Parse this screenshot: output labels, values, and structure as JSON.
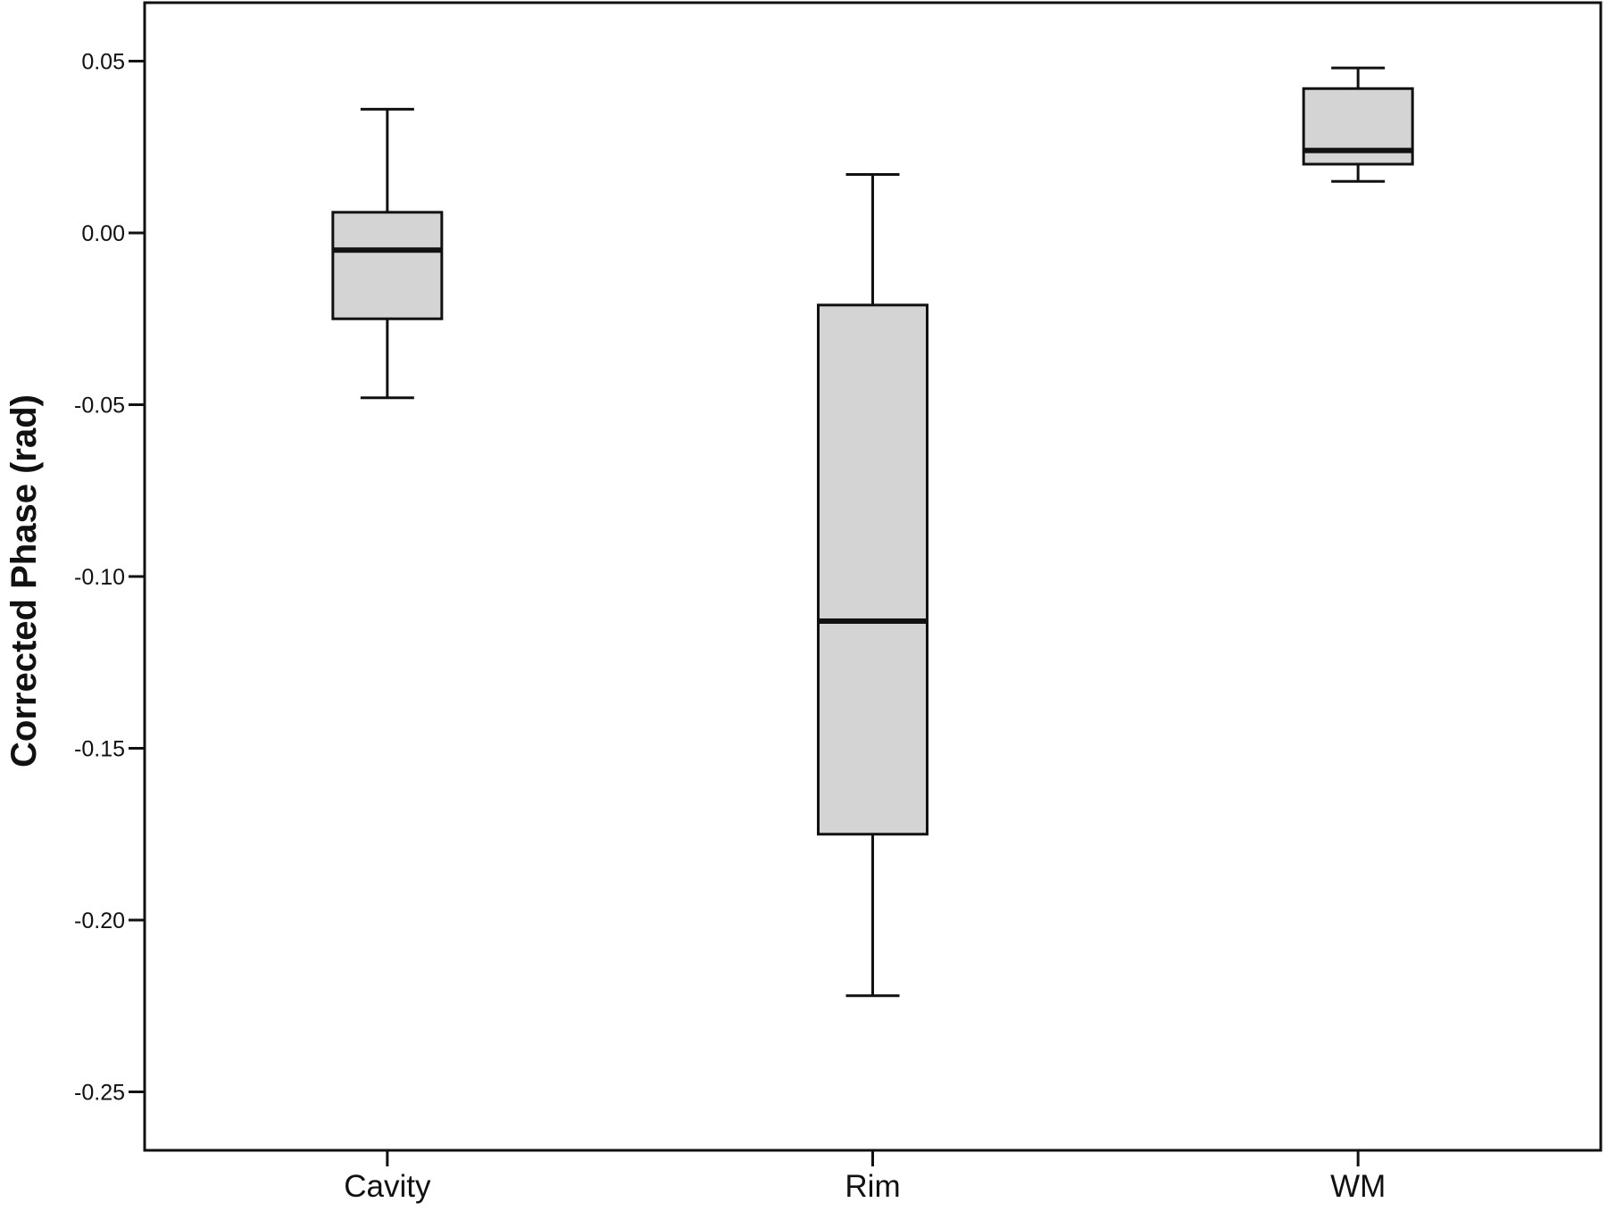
{
  "chart_data": {
    "type": "boxplot",
    "title": "",
    "xlabel": "",
    "ylabel": "Corrected Phase (rad)",
    "ylim": [
      -0.267,
      0.067
    ],
    "y_ticks": [
      0.05,
      0.0,
      -0.05,
      -0.1,
      -0.15,
      -0.2,
      -0.25
    ],
    "y_tick_labels": [
      "0.05",
      "0.00",
      "-0.05",
      "-0.10",
      "-0.15",
      "-0.20",
      "-0.25"
    ],
    "grid": false,
    "box_fill": "#d4d4d4",
    "line_color": "#111111",
    "categories": [
      "Cavity",
      "Rim",
      "WM"
    ],
    "boxes": [
      {
        "category": "Cavity",
        "whisker_low": -0.048,
        "q1": -0.025,
        "median": -0.005,
        "q3": 0.006,
        "whisker_high": 0.036
      },
      {
        "category": "Rim",
        "whisker_low": -0.222,
        "q1": -0.175,
        "median": -0.113,
        "q3": -0.021,
        "whisker_high": 0.017
      },
      {
        "category": "WM",
        "whisker_low": 0.015,
        "q1": 0.02,
        "median": 0.024,
        "q3": 0.042,
        "whisker_high": 0.048
      }
    ]
  }
}
